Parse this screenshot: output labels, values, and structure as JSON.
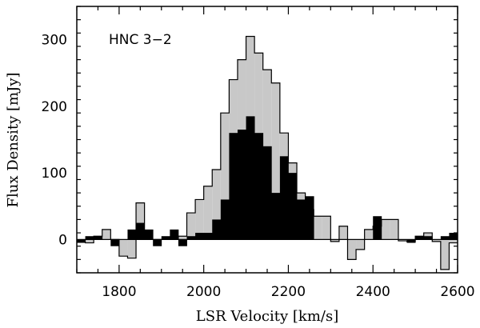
{
  "chart_data": {
    "type": "area",
    "title": "",
    "annotation": "HNC 3−2",
    "xlabel": "LSR Velocity [km/s]",
    "ylabel": "Flux Density [mJy]",
    "xlim": [
      1700,
      2600
    ],
    "ylim": [
      -50,
      350
    ],
    "x_ticks": [
      "1800",
      "2000",
      "2200",
      "2400",
      "2600"
    ],
    "y_ticks": [
      "0",
      "100",
      "200",
      "300"
    ],
    "channel_width_kms": 20,
    "grid": false,
    "legend": "none",
    "series": [
      {
        "style": "outline-filled-gray",
        "color": "#c8c8c8",
        "x": [
          1700,
          1720,
          1740,
          1760,
          1780,
          1800,
          1820,
          1840,
          1860,
          1880,
          1900,
          1920,
          1940,
          1960,
          1980,
          2000,
          2020,
          2040,
          2060,
          2080,
          2100,
          2120,
          2140,
          2160,
          2180,
          2200,
          2220,
          2240,
          2260,
          2280,
          2300,
          2320,
          2340,
          2360,
          2380,
          2400,
          2420,
          2440,
          2460,
          2480,
          2500,
          2520,
          2540,
          2560,
          2580
        ],
        "values": [
          -2,
          -5,
          5,
          15,
          0,
          -25,
          -28,
          55,
          0,
          0,
          0,
          0,
          5,
          40,
          60,
          80,
          105,
          190,
          240,
          270,
          305,
          280,
          255,
          235,
          160,
          115,
          70,
          45,
          35,
          35,
          -3,
          20,
          -30,
          -15,
          15,
          20,
          30,
          30,
          -2,
          -3,
          5,
          10,
          -3,
          -45,
          -5
        ]
      },
      {
        "style": "filled-black",
        "color": "#000000",
        "x": [
          1700,
          1720,
          1740,
          1760,
          1780,
          1800,
          1820,
          1840,
          1860,
          1880,
          1900,
          1920,
          1940,
          1960,
          1980,
          2000,
          2020,
          2040,
          2060,
          2080,
          2100,
          2120,
          2140,
          2160,
          2180,
          2200,
          2220,
          2240,
          2260,
          2280,
          2300,
          2320,
          2340,
          2360,
          2380,
          2400,
          2420,
          2440,
          2460,
          2480,
          2500,
          2520,
          2540,
          2560,
          2580
        ],
        "values": [
          -5,
          5,
          5,
          0,
          -10,
          0,
          15,
          25,
          15,
          -10,
          5,
          15,
          -10,
          5,
          10,
          10,
          30,
          60,
          160,
          165,
          185,
          160,
          140,
          70,
          125,
          100,
          60,
          65,
          0,
          0,
          0,
          0,
          0,
          0,
          0,
          35,
          0,
          0,
          0,
          -5,
          5,
          5,
          0,
          5,
          10
        ]
      }
    ]
  }
}
